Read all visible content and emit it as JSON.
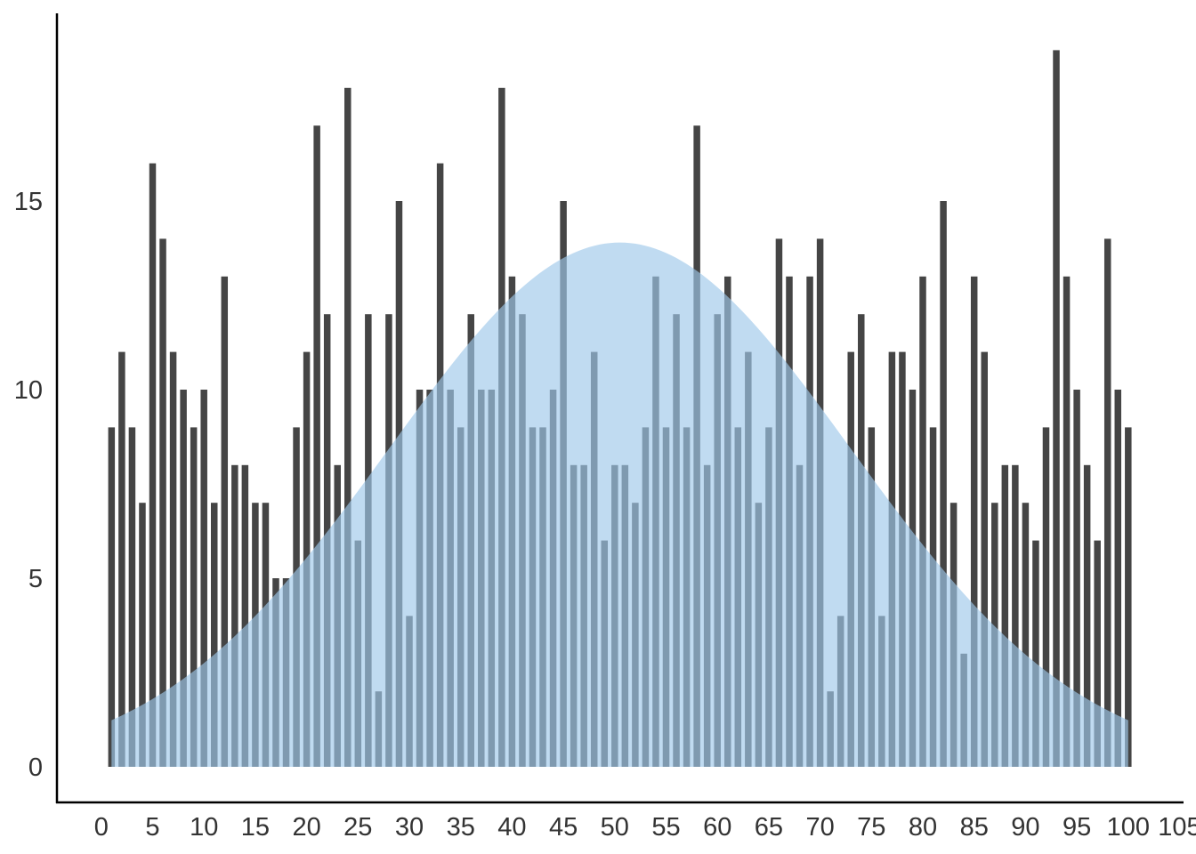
{
  "chart_data": {
    "type": "bar",
    "title": "",
    "xlabel": "",
    "ylabel": "",
    "xlim": [
      -4,
      105
    ],
    "ylim": [
      0,
      20
    ],
    "x_ticks": [
      "0",
      "5",
      "10",
      "15",
      "20",
      "25",
      "30",
      "35",
      "40",
      "45",
      "50",
      "55",
      "60",
      "65",
      "70",
      "75",
      "80",
      "85",
      "90",
      "95",
      "100",
      "105"
    ],
    "y_ticks": [
      "0",
      "5",
      "10",
      "15"
    ],
    "grid": false,
    "legend": "none",
    "bar_color": "#454545",
    "x": [
      1,
      2,
      3,
      4,
      5,
      6,
      7,
      8,
      9,
      10,
      11,
      12,
      13,
      14,
      15,
      16,
      17,
      18,
      19,
      20,
      21,
      22,
      23,
      24,
      25,
      26,
      27,
      28,
      29,
      30,
      31,
      32,
      33,
      34,
      35,
      36,
      37,
      38,
      39,
      40,
      41,
      42,
      43,
      44,
      45,
      46,
      47,
      48,
      49,
      50,
      51,
      52,
      53,
      54,
      55,
      56,
      57,
      58,
      59,
      60,
      61,
      62,
      63,
      64,
      65,
      66,
      67,
      68,
      69,
      70,
      71,
      72,
      73,
      74,
      75,
      76,
      77,
      78,
      79,
      80,
      81,
      82,
      83,
      84,
      85,
      86,
      87,
      88,
      89,
      90,
      91,
      92,
      93,
      94,
      95,
      96,
      97,
      98,
      99,
      100
    ],
    "values": [
      9,
      11,
      9,
      7,
      16,
      14,
      11,
      10,
      9,
      10,
      7,
      13,
      8,
      8,
      7,
      7,
      5,
      5,
      9,
      11,
      17,
      12,
      8,
      18,
      6,
      12,
      2,
      12,
      15,
      4,
      10,
      10,
      16,
      10,
      9,
      12,
      10,
      10,
      18,
      13,
      12,
      9,
      9,
      10,
      15,
      8,
      8,
      11,
      6,
      8,
      8,
      7,
      9,
      13,
      9,
      12,
      9,
      17,
      8,
      12,
      13,
      9,
      11,
      7,
      9,
      14,
      13,
      8,
      13,
      14,
      2,
      4,
      11,
      12,
      9,
      4,
      11,
      11,
      10,
      13,
      9,
      15,
      7,
      3,
      13,
      11,
      7,
      8,
      8,
      7,
      6,
      9,
      19,
      13,
      10,
      8,
      6,
      14,
      10,
      9
    ],
    "overlay": {
      "type": "area",
      "shape": "gaussian",
      "color": "#9ec7ea",
      "opacity": 0.65,
      "x_range": [
        1,
        100
      ],
      "peak_x": 50.5,
      "peak_y": 13.9,
      "sd": 22.5
    }
  }
}
